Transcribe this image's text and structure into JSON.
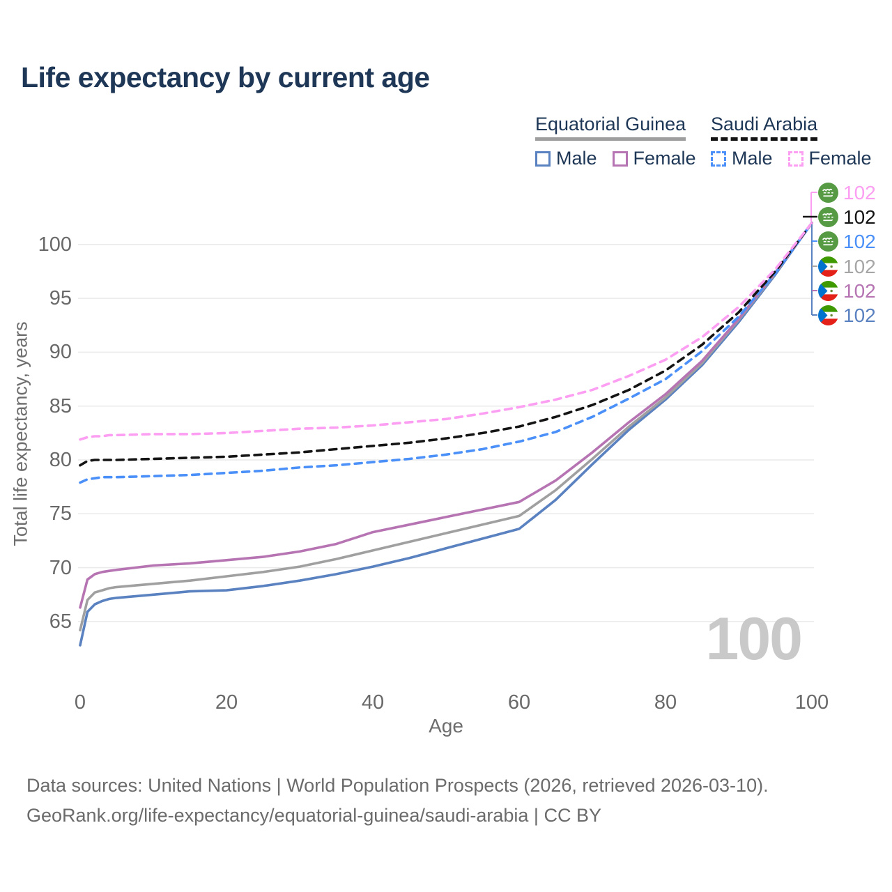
{
  "title": "Life expectancy by current age",
  "legend": {
    "groups": [
      {
        "name": "Equatorial Guinea",
        "line_style": "solid",
        "underline_color": "#9e9e9e",
        "items": [
          {
            "label": "Male",
            "color": "#5a81c0",
            "dash": false
          },
          {
            "label": "Female",
            "color": "#b674b3",
            "dash": false
          }
        ]
      },
      {
        "name": "Saudi Arabia",
        "line_style": "dashed",
        "underline_color": "#141414",
        "items": [
          {
            "label": "Male",
            "color": "#4a90f8",
            "dash": true
          },
          {
            "label": "Female",
            "color": "#fc9ef2",
            "dash": true
          }
        ]
      }
    ]
  },
  "chart_data": {
    "type": "line",
    "title": "Life expectancy by current age",
    "xlabel": "Age",
    "ylabel": "Total life expectancy, years",
    "xlim": [
      0,
      100
    ],
    "ylim": [
      62,
      103
    ],
    "xticks": [
      0,
      20,
      40,
      60,
      80,
      100
    ],
    "yticks": [
      65,
      70,
      75,
      80,
      85,
      90,
      95,
      100
    ],
    "grid": true,
    "legend_position": "top-right",
    "x": [
      0,
      1,
      2,
      3,
      4,
      5,
      10,
      15,
      20,
      25,
      30,
      35,
      40,
      45,
      50,
      55,
      60,
      65,
      70,
      75,
      80,
      85,
      90,
      95,
      100
    ],
    "series": [
      {
        "name": "Equatorial Guinea Male",
        "country": "Equatorial Guinea",
        "sex": "Male",
        "color": "#5a81c0",
        "dash": false,
        "values": [
          62.8,
          65.9,
          66.6,
          66.9,
          67.1,
          67.2,
          67.5,
          67.8,
          67.9,
          68.3,
          68.8,
          69.4,
          70.1,
          70.9,
          71.8,
          72.7,
          73.6,
          76.3,
          79.6,
          82.8,
          85.6,
          88.8,
          92.8,
          97.2,
          102
        ]
      },
      {
        "name": "Equatorial Guinea Total",
        "country": "Equatorial Guinea",
        "sex": "Both",
        "color": "#a0a0a0",
        "dash": false,
        "values": [
          64.2,
          67.0,
          67.7,
          67.9,
          68.1,
          68.2,
          68.5,
          68.8,
          69.2,
          69.6,
          70.1,
          70.8,
          71.6,
          72.4,
          73.2,
          74.0,
          74.8,
          77.2,
          80.1,
          83.1,
          85.8,
          89.0,
          93.0,
          97.3,
          102
        ]
      },
      {
        "name": "Equatorial Guinea Female",
        "country": "Equatorial Guinea",
        "sex": "Female",
        "color": "#b674b3",
        "dash": false,
        "values": [
          66.3,
          68.9,
          69.4,
          69.6,
          69.7,
          69.8,
          70.2,
          70.4,
          70.7,
          71.0,
          71.5,
          72.2,
          73.3,
          74.0,
          74.7,
          75.4,
          76.1,
          78.1,
          80.7,
          83.5,
          86.1,
          89.2,
          93.1,
          97.4,
          102
        ]
      },
      {
        "name": "Saudi Arabia Male",
        "country": "Saudi Arabia",
        "sex": "Male",
        "color": "#4a90f8",
        "dash": true,
        "values": [
          77.9,
          78.2,
          78.3,
          78.4,
          78.4,
          78.4,
          78.5,
          78.6,
          78.8,
          79.0,
          79.3,
          79.5,
          79.8,
          80.1,
          80.5,
          81.0,
          81.7,
          82.6,
          84.0,
          85.7,
          87.5,
          90.1,
          93.3,
          97.3,
          102
        ]
      },
      {
        "name": "Saudi Arabia Total",
        "country": "Saudi Arabia",
        "sex": "Both",
        "color": "#141414",
        "dash": true,
        "values": [
          79.5,
          79.9,
          80.0,
          80.0,
          80.0,
          80.0,
          80.1,
          80.2,
          80.3,
          80.5,
          80.7,
          81.0,
          81.3,
          81.6,
          82.0,
          82.5,
          83.1,
          84.0,
          85.1,
          86.5,
          88.3,
          90.7,
          93.7,
          97.5,
          102
        ]
      },
      {
        "name": "Saudi Arabia Female",
        "country": "Saudi Arabia",
        "sex": "Female",
        "color": "#fc9ef2",
        "dash": true,
        "values": [
          81.9,
          82.1,
          82.2,
          82.2,
          82.3,
          82.3,
          82.4,
          82.4,
          82.5,
          82.7,
          82.9,
          83.0,
          83.2,
          83.5,
          83.8,
          84.3,
          84.9,
          85.6,
          86.5,
          87.8,
          89.3,
          91.4,
          94.2,
          97.7,
          102
        ]
      }
    ]
  },
  "end_labels": [
    {
      "flag": "saudi-arabia",
      "series": "Saudi Arabia Female",
      "value": "102",
      "color": "#fc9ef2"
    },
    {
      "flag": "saudi-arabia",
      "series": "Saudi Arabia Total",
      "value": "102",
      "color": "#141414"
    },
    {
      "flag": "saudi-arabia",
      "series": "Saudi Arabia Male",
      "value": "102",
      "color": "#4a90f8"
    },
    {
      "flag": "equatorial-guinea",
      "series": "Equatorial Guinea Total",
      "value": "102",
      "color": "#a6a6a6"
    },
    {
      "flag": "equatorial-guinea",
      "series": "Equatorial Guinea Female",
      "value": "102",
      "color": "#b674b3"
    },
    {
      "flag": "equatorial-guinea",
      "series": "Equatorial Guinea Male",
      "value": "102",
      "color": "#5a81c0"
    }
  ],
  "watermark": "100",
  "footer": {
    "line1": "Data sources: United Nations | World Population Prospects (2026, retrieved 2026-03-10).",
    "line2": "GeoRank.org/life-expectancy/equatorial-guinea/saudi-arabia | CC BY"
  },
  "colors": {
    "title_text": "#1e3756",
    "axis_text": "#6d6d6d",
    "gridline": "#eaeaea",
    "watermark": "#c9c9c9"
  }
}
